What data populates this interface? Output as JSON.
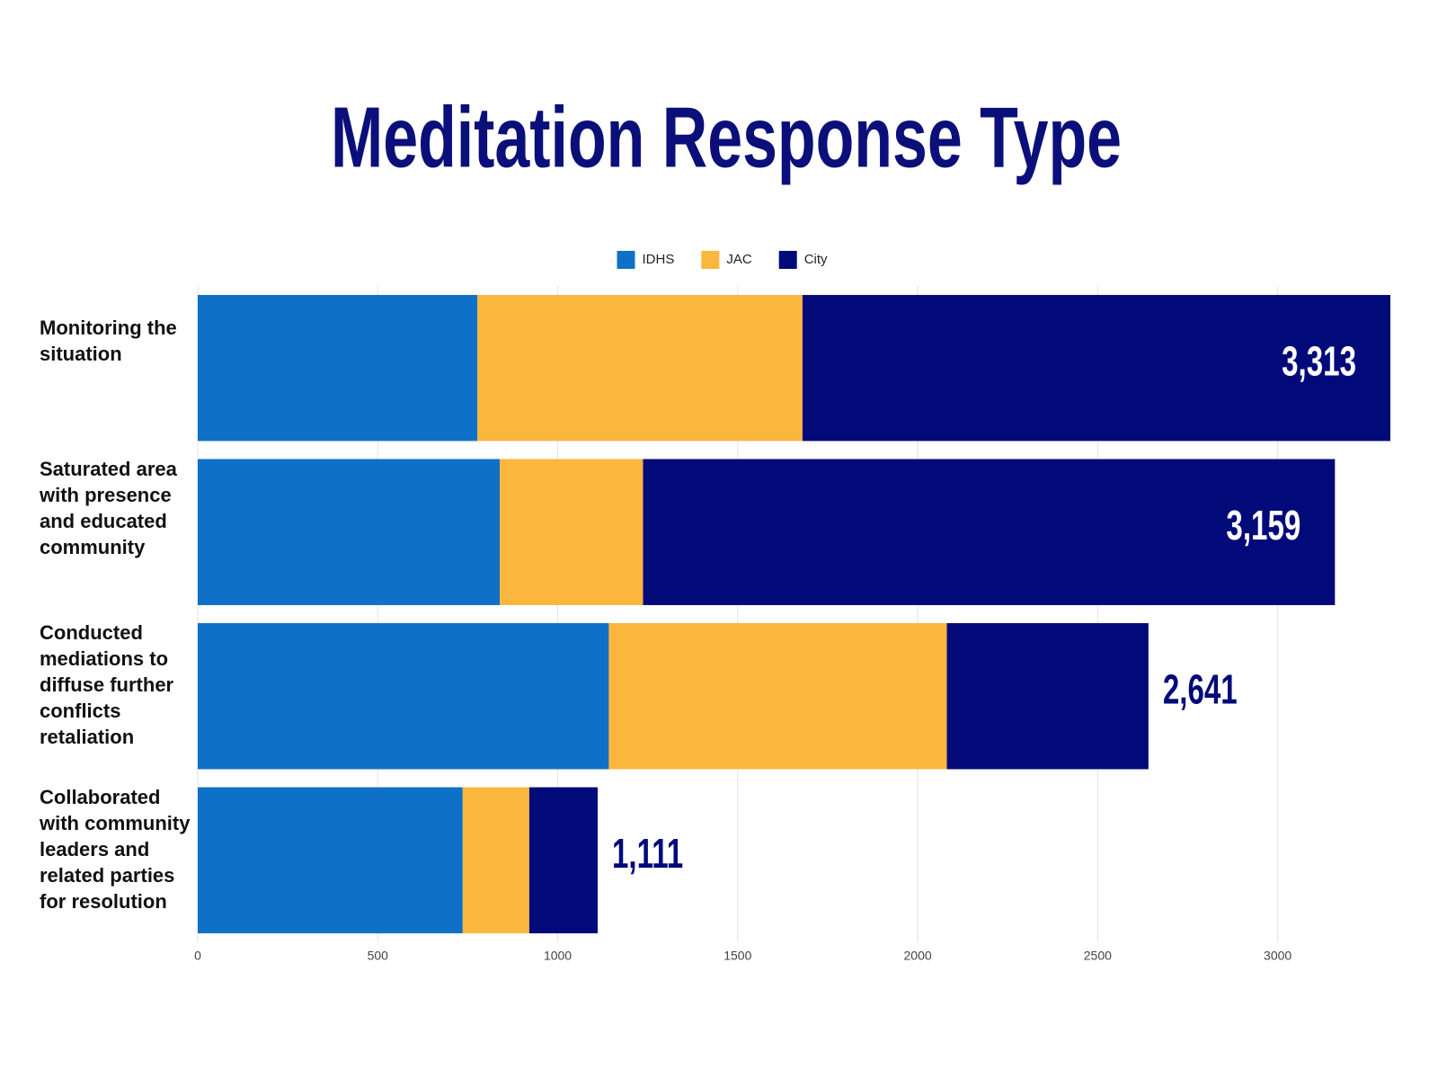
{
  "chart_data": {
    "type": "stacked-bar-horizontal",
    "title": "Meditation Response Type",
    "categories": [
      "Monitoring the situation",
      "Saturated area with presence and educated community",
      "Conducted mediations to diffuse further conflicts retaliation",
      "Collaborated with community leaders and related parties for resolution"
    ],
    "series": [
      {
        "name": "IDHS",
        "color": "#0f70c7",
        "values": [
          777,
          839,
          1142,
          736
        ]
      },
      {
        "name": "JAC",
        "color": "#fbb63d",
        "values": [
          903,
          398,
          939,
          185
        ]
      },
      {
        "name": "City",
        "color": "#020a7a",
        "values": [
          1633,
          1922,
          560,
          190
        ]
      }
    ],
    "totals": [
      3313,
      3159,
      2641,
      1111
    ],
    "total_labels": [
      "3,313",
      "3,159",
      "2,641",
      "1,111"
    ],
    "xlim": [
      0,
      3313
    ],
    "xticks": [
      0,
      500,
      1000,
      1500,
      2000,
      2500,
      3000
    ],
    "grid": true,
    "legend": "top"
  }
}
